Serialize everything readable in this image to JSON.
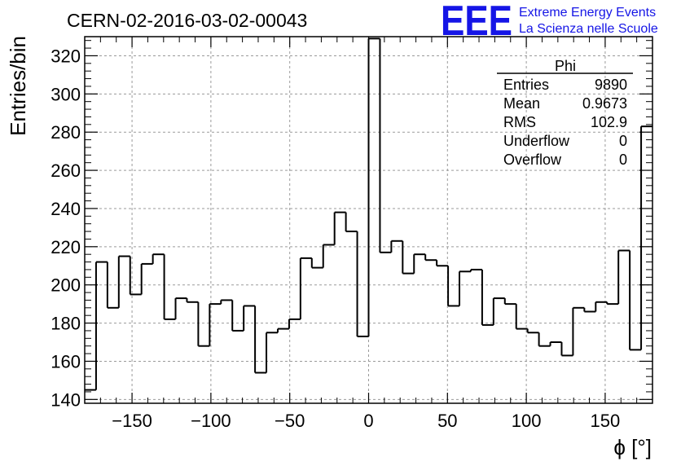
{
  "chart_data": {
    "type": "bar",
    "title": "CERN-02-2016-03-02-00043",
    "xlabel": "ϕ [°]",
    "ylabel": "Entries/bin",
    "xlim": [
      -180,
      180
    ],
    "ylim": [
      138,
      330
    ],
    "bin_edges_start": -180,
    "bin_width": 7.2,
    "values": [
      145,
      212,
      188,
      215,
      195,
      211,
      216,
      182,
      193,
      191,
      168,
      190,
      192,
      176,
      189,
      154,
      175,
      177,
      182,
      214,
      209,
      221,
      238,
      228,
      173,
      329,
      217,
      223,
      206,
      216,
      213,
      210,
      189,
      207,
      208,
      179,
      193,
      190,
      177,
      175,
      168,
      170,
      163,
      188,
      186,
      191,
      190,
      218,
      166,
      283
    ],
    "x_ticks": [
      -150,
      -100,
      -50,
      0,
      50,
      100,
      150
    ],
    "x_tick_labels": [
      "−150",
      "−100",
      "−50",
      "0",
      "50",
      "100",
      "150"
    ],
    "y_ticks": [
      140,
      160,
      180,
      200,
      220,
      240,
      260,
      280,
      300,
      320
    ],
    "y_tick_labels": [
      "140",
      "160",
      "180",
      "200",
      "220",
      "240",
      "260",
      "280",
      "300",
      "320"
    ],
    "grid": true
  },
  "stats": {
    "name": "Phi",
    "rows": [
      {
        "label": "Entries",
        "value": "9890"
      },
      {
        "label": "Mean",
        "value": "0.9673"
      },
      {
        "label": "RMS",
        "value": "102.9"
      },
      {
        "label": "Underflow",
        "value": "0"
      },
      {
        "label": "Overflow",
        "value": "0"
      }
    ]
  },
  "logo": {
    "mark": "EEE",
    "line1": "Extreme Energy Events",
    "line2": "La Scienza nelle Scuole",
    "color": "#1515e6"
  }
}
